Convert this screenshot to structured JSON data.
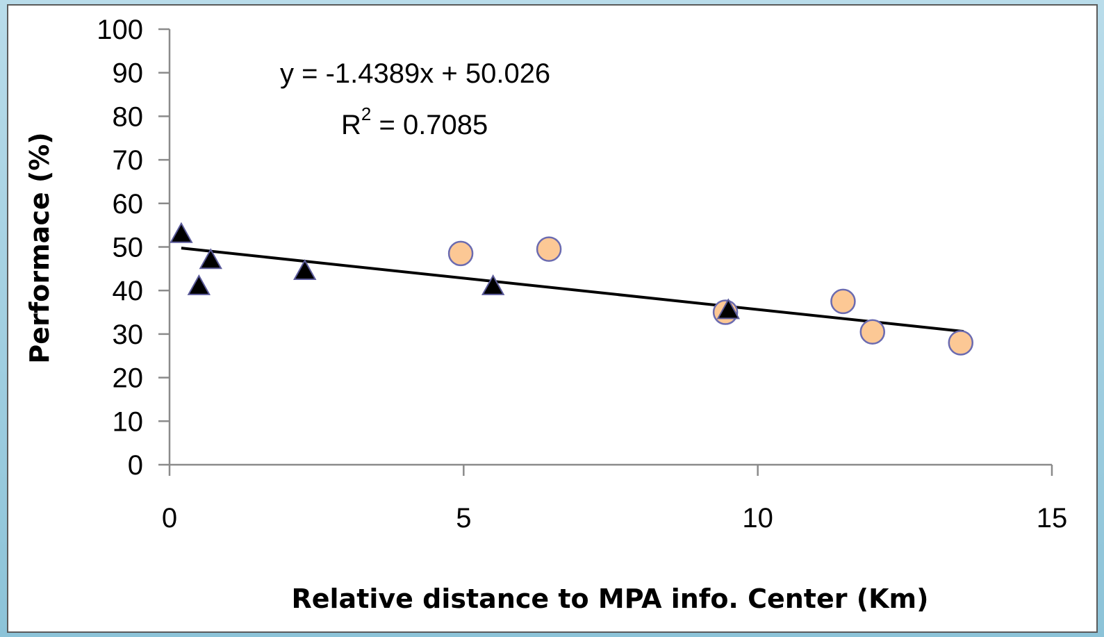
{
  "chart_data": {
    "type": "scatter",
    "title": "",
    "xlabel": "Relative distance to MPA info. Center (Km)",
    "ylabel": "Performace (%)",
    "xlim": [
      0,
      15
    ],
    "ylim": [
      0,
      100
    ],
    "xticks": [
      "0",
      "5",
      "10",
      "15"
    ],
    "yticks": [
      "0",
      "10",
      "20",
      "30",
      "40",
      "50",
      "60",
      "70",
      "80",
      "90",
      "100"
    ],
    "grid": false,
    "legend": "none",
    "series": [
      {
        "marker": "triangle",
        "color": "#000000",
        "edge_color": "#5b5b9a",
        "points": [
          {
            "x": 0.2,
            "y": 53
          },
          {
            "x": 0.5,
            "y": 41
          },
          {
            "x": 0.7,
            "y": 47
          },
          {
            "x": 2.3,
            "y": 44.5
          },
          {
            "x": 5.5,
            "y": 41
          },
          {
            "x": 9.5,
            "y": 35.5
          }
        ]
      },
      {
        "marker": "circle",
        "color": "#fcc895",
        "edge_color": "#6b6bb0",
        "points": [
          {
            "x": 4.95,
            "y": 48.5
          },
          {
            "x": 6.45,
            "y": 49.5
          },
          {
            "x": 9.45,
            "y": 35
          },
          {
            "x": 11.45,
            "y": 37.5
          },
          {
            "x": 11.95,
            "y": 30.5
          },
          {
            "x": 13.45,
            "y": 28
          }
        ]
      }
    ],
    "trendline": {
      "slope": -1.4389,
      "intercept": 50.026,
      "x_range": [
        0.2,
        13.5
      ],
      "color": "#000000"
    },
    "annotations": {
      "equation": "y = -1.4389x + 50.026",
      "r2_prefix": "R",
      "r2_exponent": "2",
      "r2_suffix": " = 0.7085"
    }
  }
}
